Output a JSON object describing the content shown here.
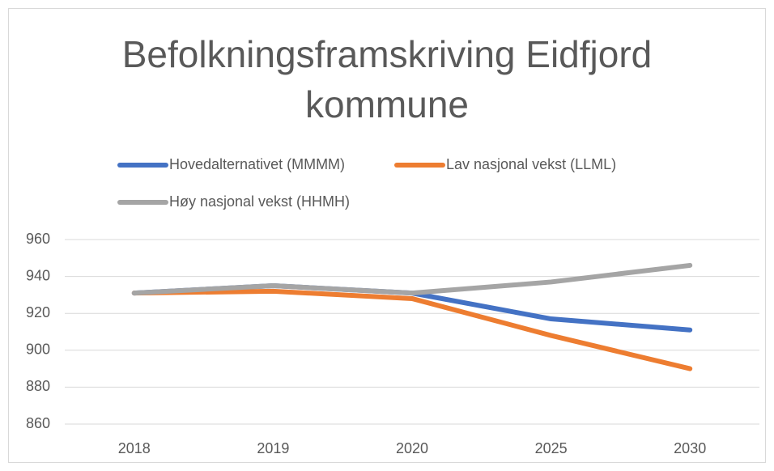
{
  "chart_data": {
    "type": "line",
    "title": "Befolkningsframskriving Eidfjord kommune",
    "categories": [
      "2018",
      "2019",
      "2020",
      "2025",
      "2030"
    ],
    "series": [
      {
        "name": "Hovedalternativet (MMMM)",
        "color": "#4472c4",
        "values": [
          931,
          935,
          931,
          917,
          911
        ]
      },
      {
        "name": "Lav nasjonal vekst (LLML)",
        "color": "#ed7d31",
        "values": [
          931,
          932,
          928,
          908,
          890
        ]
      },
      {
        "name": "Høy nasjonal vekst (HHMH)",
        "color": "#a5a5a5",
        "values": [
          931,
          935,
          931,
          937,
          946
        ]
      }
    ],
    "ylim": [
      860,
      960
    ],
    "yticks": [
      860,
      880,
      900,
      920,
      940,
      960
    ],
    "grid": true,
    "legend": "top"
  }
}
